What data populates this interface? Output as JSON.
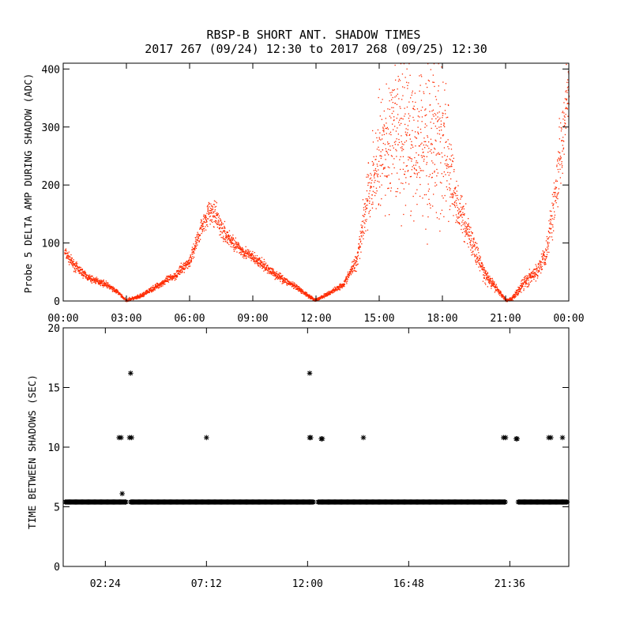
{
  "title_line1": "RBSP-B SHORT ANT. SHADOW TIMES",
  "title_line2": "2017 267 (09/24) 12:30 to 2017 268 (09/25) 12:30",
  "colors": {
    "top_series": "#ff2a00",
    "bottom_series": "#000000",
    "axes": "#000000",
    "background": "#ffffff"
  },
  "chart_data": [
    {
      "type": "scatter",
      "ylabel": "Probe 5 DELTA AMP DURING SHADOW (ADC)",
      "xlabel": "",
      "x_unit": "hours",
      "xlim": [
        0,
        24
      ],
      "ylim": [
        0,
        410
      ],
      "x_tick_values": [
        0,
        3,
        6,
        9,
        12,
        15,
        18,
        21,
        24
      ],
      "x_tick_labels": [
        "00:00",
        "03:00",
        "06:00",
        "09:00",
        "12:00",
        "15:00",
        "18:00",
        "21:00",
        "00:00"
      ],
      "y_tick_values": [
        0,
        100,
        200,
        300,
        400
      ],
      "y_tick_labels": [
        "0",
        "100",
        "200",
        "300",
        "400"
      ],
      "grid": false,
      "series": [
        {
          "color": "#ff2a00",
          "marker": "dot",
          "envelope": [
            {
              "x": 0.05,
              "y": 85,
              "spread": 8
            },
            {
              "x": 0.5,
              "y": 62,
              "spread": 7
            },
            {
              "x": 1.2,
              "y": 40,
              "spread": 5
            },
            {
              "x": 2.0,
              "y": 30,
              "spread": 4
            },
            {
              "x": 2.6,
              "y": 15,
              "spread": 3
            },
            {
              "x": 2.95,
              "y": 2,
              "spread": 2
            },
            {
              "x": 3.6,
              "y": 8,
              "spread": 3
            },
            {
              "x": 4.5,
              "y": 28,
              "spread": 4
            },
            {
              "x": 5.3,
              "y": 45,
              "spread": 6
            },
            {
              "x": 6.0,
              "y": 70,
              "spread": 8
            },
            {
              "x": 6.5,
              "y": 125,
              "spread": 14
            },
            {
              "x": 6.9,
              "y": 155,
              "spread": 15
            },
            {
              "x": 7.2,
              "y": 148,
              "spread": 18
            },
            {
              "x": 7.6,
              "y": 118,
              "spread": 14
            },
            {
              "x": 8.3,
              "y": 92,
              "spread": 9
            },
            {
              "x": 9.0,
              "y": 75,
              "spread": 8
            },
            {
              "x": 10.0,
              "y": 48,
              "spread": 6
            },
            {
              "x": 11.0,
              "y": 25,
              "spread": 4
            },
            {
              "x": 11.95,
              "y": 2,
              "spread": 2
            },
            {
              "x": 12.5,
              "y": 12,
              "spread": 3
            },
            {
              "x": 13.3,
              "y": 30,
              "spread": 4
            },
            {
              "x": 13.9,
              "y": 70,
              "spread": 12
            },
            {
              "x": 14.4,
              "y": 175,
              "spread": 40
            },
            {
              "x": 15.0,
              "y": 255,
              "spread": 85
            },
            {
              "x": 16.0,
              "y": 290,
              "spread": 110
            },
            {
              "x": 17.0,
              "y": 280,
              "spread": 110
            },
            {
              "x": 18.0,
              "y": 275,
              "spread": 115
            },
            {
              "x": 18.6,
              "y": 175,
              "spread": 35
            },
            {
              "x": 19.3,
              "y": 110,
              "spread": 20
            },
            {
              "x": 20.0,
              "y": 45,
              "spread": 10
            },
            {
              "x": 20.6,
              "y": 20,
              "spread": 5
            },
            {
              "x": 21.0,
              "y": 2,
              "spread": 2
            },
            {
              "x": 21.3,
              "y": 5,
              "spread": 3
            },
            {
              "x": 21.9,
              "y": 35,
              "spread": 10
            },
            {
              "x": 22.4,
              "y": 48,
              "spread": 10
            },
            {
              "x": 22.9,
              "y": 85,
              "spread": 18
            },
            {
              "x": 23.3,
              "y": 175,
              "spread": 35
            },
            {
              "x": 23.7,
              "y": 300,
              "spread": 60
            },
            {
              "x": 24.0,
              "y": 380,
              "spread": 30
            }
          ]
        }
      ]
    },
    {
      "type": "scatter",
      "ylabel": "TIME BETWEEN SHADOWS (SEC)",
      "xlabel": "",
      "x_unit": "hours",
      "xlim": [
        0.4,
        24.4
      ],
      "ylim": [
        0,
        20
      ],
      "x_tick_values": [
        2.4,
        7.2,
        12.0,
        16.8,
        21.6
      ],
      "x_tick_labels": [
        "02:24",
        "07:12",
        "12:00",
        "16:48",
        "21:36"
      ],
      "y_tick_values": [
        0,
        5,
        10,
        15,
        20
      ],
      "y_tick_labels": [
        "0",
        "5",
        "10",
        "15",
        "20"
      ],
      "grid": false,
      "series": [
        {
          "color": "#000000",
          "marker": "asterisk",
          "baseline": {
            "y": 5.4,
            "x_ranges": [
              [
                0.5,
                3.4
              ],
              [
                3.6,
                12.3
              ],
              [
                12.5,
                21.4
              ],
              [
                22.0,
                24.35
              ]
            ]
          },
          "points": [
            {
              "x": 3.05,
              "y": 10.8
            },
            {
              "x": 3.15,
              "y": 10.8
            },
            {
              "x": 3.2,
              "y": 6.1
            },
            {
              "x": 3.55,
              "y": 10.8
            },
            {
              "x": 3.65,
              "y": 10.8
            },
            {
              "x": 3.6,
              "y": 16.2
            },
            {
              "x": 7.2,
              "y": 10.8
            },
            {
              "x": 12.1,
              "y": 10.8
            },
            {
              "x": 12.15,
              "y": 10.8
            },
            {
              "x": 12.1,
              "y": 16.2
            },
            {
              "x": 12.65,
              "y": 10.7
            },
            {
              "x": 12.7,
              "y": 10.7
            },
            {
              "x": 14.65,
              "y": 10.8
            },
            {
              "x": 21.3,
              "y": 10.8
            },
            {
              "x": 21.4,
              "y": 10.8
            },
            {
              "x": 21.9,
              "y": 10.7
            },
            {
              "x": 21.95,
              "y": 10.7
            },
            {
              "x": 23.45,
              "y": 10.8
            },
            {
              "x": 23.55,
              "y": 10.8
            },
            {
              "x": 24.1,
              "y": 10.8
            }
          ]
        }
      ]
    }
  ]
}
